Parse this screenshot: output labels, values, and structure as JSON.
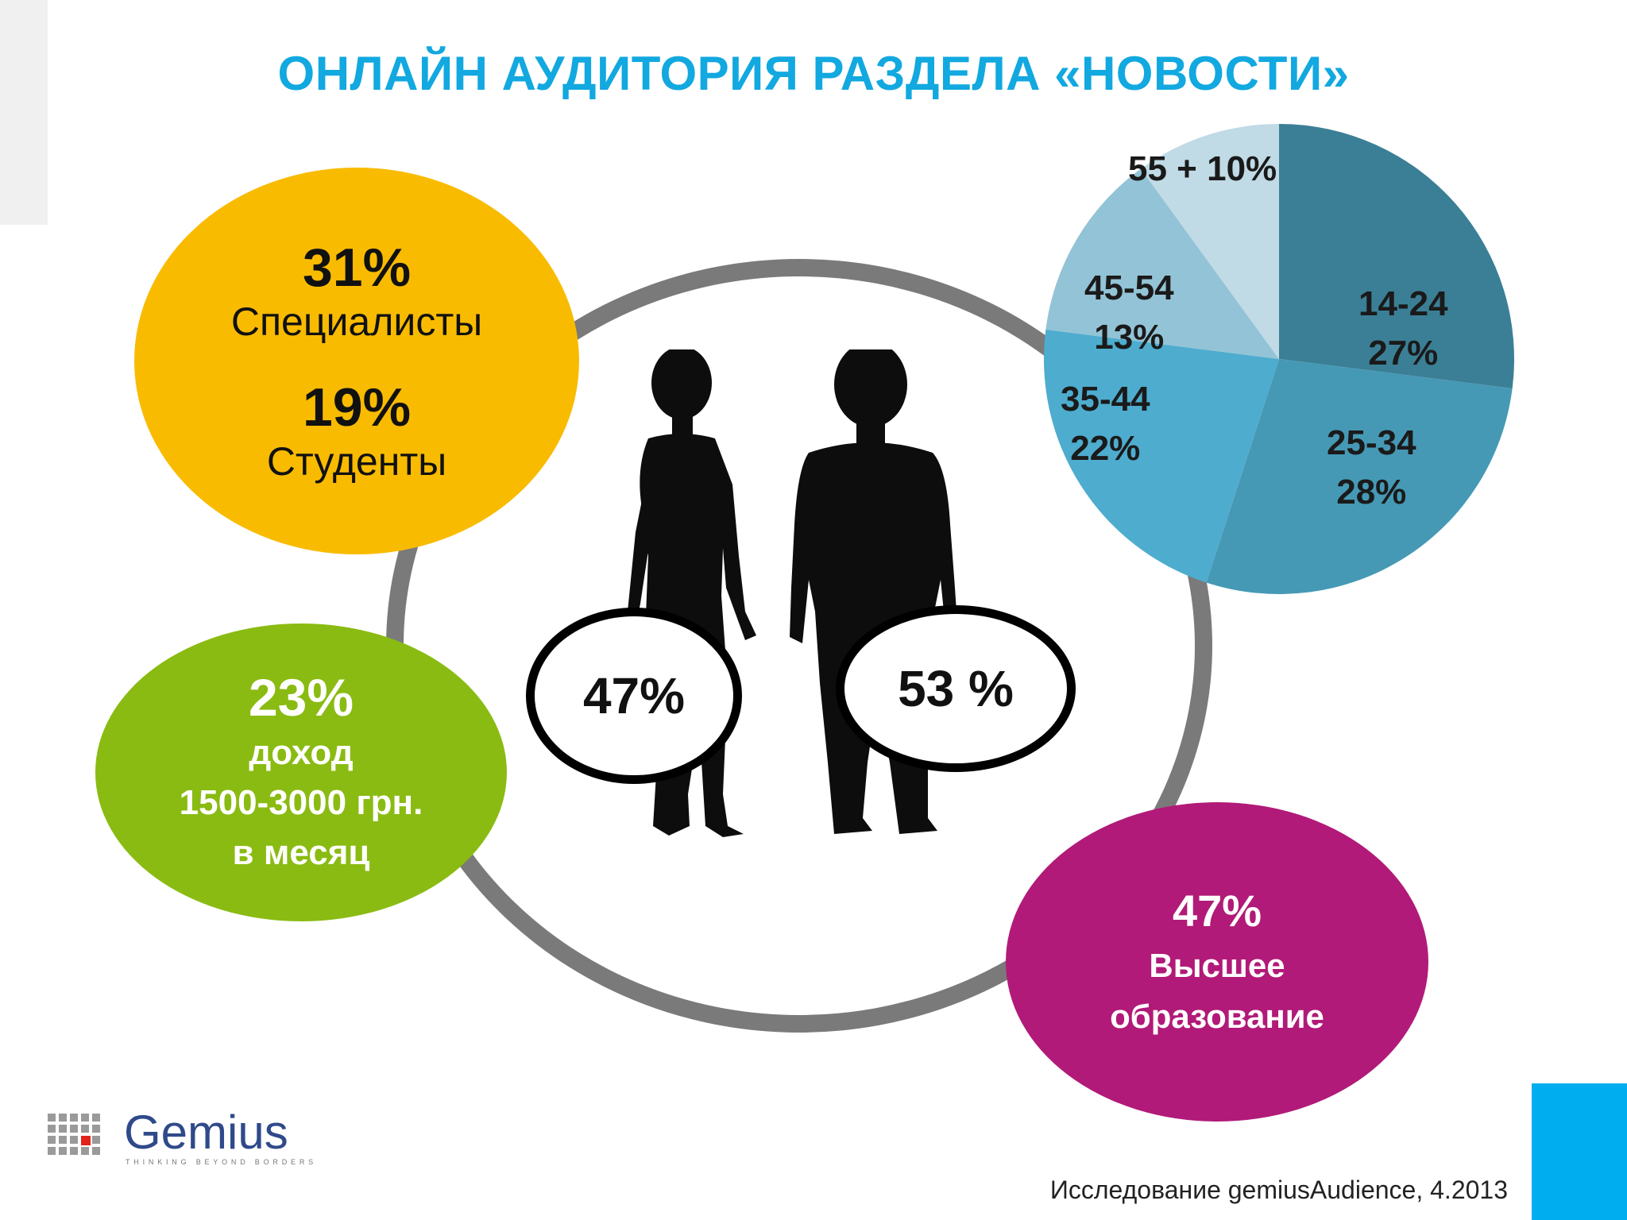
{
  "title": "ОНЛАЙН АУДИТОРИЯ РАЗДЕЛА «НОВОСТИ»",
  "occupation": {
    "specialists_value": "31%",
    "specialists_label": "Специалисты",
    "students_value": "19%",
    "students_label": "Студенты"
  },
  "income": {
    "value": "23%",
    "line1": "доход",
    "line2": "1500-3000 грн.",
    "line3": "в месяц"
  },
  "education": {
    "value": "47%",
    "line1": "Высшее",
    "line2": "образование"
  },
  "gender": {
    "female": "47%",
    "male": "53 %"
  },
  "chart_data": {
    "type": "pie",
    "categories": [
      "14-24",
      "25-34",
      "35-44",
      "45-54",
      "55 +"
    ],
    "values": [
      27,
      28,
      22,
      13,
      10
    ],
    "labels": [
      "27%",
      "28%",
      "22%",
      "13%",
      "10%"
    ],
    "colors": [
      "#3b7f96",
      "#4599b5",
      "#4eacce",
      "#93c3d6",
      "#c0dae6"
    ]
  },
  "logo": {
    "text": "Gemius",
    "tagline": "THINKING BEYOND BORDERS"
  },
  "source": "Исследование gemiusAudience, 4.2013",
  "colors": {
    "title": "#12a8e0",
    "yellow": "#f9bb00",
    "green": "#8abb12",
    "purple": "#b11a78",
    "ring": "#7a7a7a",
    "corner": "#00aeef"
  }
}
